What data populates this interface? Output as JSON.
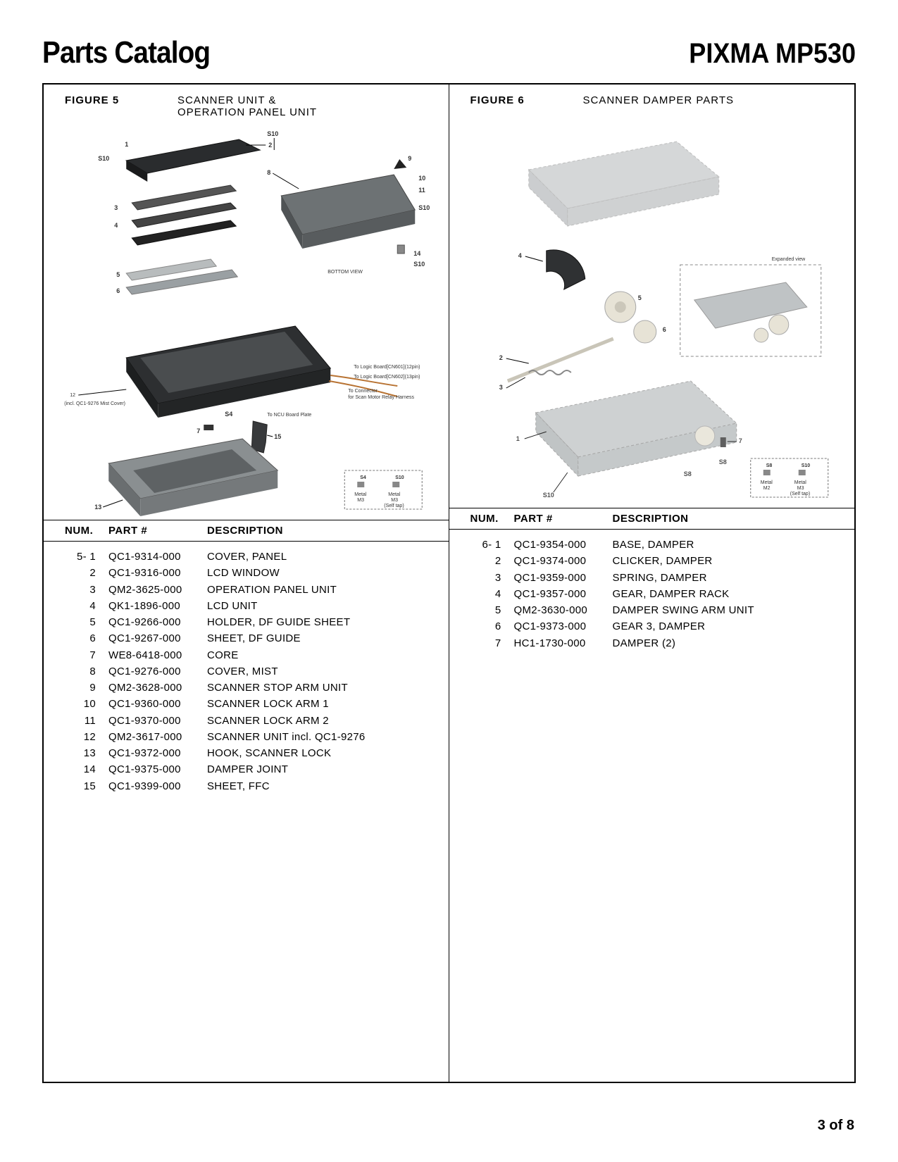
{
  "header": {
    "left": "Parts Catalog",
    "right": "PIXMA MP530"
  },
  "figures": [
    {
      "label": "FIGURE 5",
      "title": "SCANNER UNIT &\nOPERATION PANEL UNIT",
      "diagram_callouts": [
        "1",
        "2",
        "3",
        "4",
        "5",
        "6",
        "7",
        "8",
        "9",
        "10",
        "11",
        "12",
        "13",
        "14",
        "15",
        "S4",
        "S10"
      ],
      "diagram_notes": [
        "BOTTOM VIEW",
        "To Logic Board[CN601](12pin)",
        "To Logic Board[CN602](13pin)",
        "To Connector for Scan Motor Relay Harness",
        "To NCU Board Plate",
        "(incl. QC1-9276 Mist Cover)"
      ],
      "screw_box": {
        "cols": [
          "S4",
          "S10"
        ],
        "metal": [
          "Metal M3",
          "Metal M3 (Self tap)"
        ]
      },
      "table_headers": [
        "NUM.",
        "PART #",
        "DESCRIPTION"
      ],
      "rows": [
        {
          "num": "5- 1",
          "part": "QC1-9314-000",
          "desc": "COVER, PANEL"
        },
        {
          "num": "2",
          "part": "QC1-9316-000",
          "desc": "LCD WINDOW"
        },
        {
          "num": "3",
          "part": "QM2-3625-000",
          "desc": "OPERATION PANEL UNIT"
        },
        {
          "num": "4",
          "part": "QK1-1896-000",
          "desc": "LCD UNIT"
        },
        {
          "num": "5",
          "part": "QC1-9266-000",
          "desc": "HOLDER, DF GUIDE SHEET"
        },
        {
          "num": "6",
          "part": "QC1-9267-000",
          "desc": "SHEET, DF GUIDE"
        },
        {
          "num": "7",
          "part": "WE8-6418-000",
          "desc": "CORE"
        },
        {
          "num": "8",
          "part": "QC1-9276-000",
          "desc": "COVER, MIST"
        },
        {
          "num": "9",
          "part": "QM2-3628-000",
          "desc": "SCANNER STOP ARM UNIT"
        },
        {
          "num": "10",
          "part": "QC1-9360-000",
          "desc": "SCANNER LOCK ARM 1"
        },
        {
          "num": "11",
          "part": "QC1-9370-000",
          "desc": "SCANNER LOCK ARM 2"
        },
        {
          "num": "12",
          "part": "QM2-3617-000",
          "desc": "SCANNER UNIT incl. QC1-9276"
        },
        {
          "num": "13",
          "part": "QC1-9372-000",
          "desc": "HOOK, SCANNER LOCK"
        },
        {
          "num": "14",
          "part": "QC1-9375-000",
          "desc": "DAMPER JOINT"
        },
        {
          "num": "15",
          "part": "QC1-9399-000",
          "desc": "SHEET, FFC"
        }
      ]
    },
    {
      "label": "FIGURE 6",
      "title": "SCANNER DAMPER PARTS",
      "diagram_callouts": [
        "1",
        "2",
        "3",
        "4",
        "5",
        "6",
        "7",
        "S8",
        "S10"
      ],
      "diagram_notes": [
        "Expanded view"
      ],
      "screw_box": {
        "cols": [
          "S8",
          "S10"
        ],
        "metal": [
          "Metal M2",
          "Metal M3 (Self tap)"
        ]
      },
      "table_headers": [
        "NUM.",
        "PART #",
        "DESCRIPTION"
      ],
      "rows": [
        {
          "num": "6- 1",
          "part": "QC1-9354-000",
          "desc": "BASE, DAMPER"
        },
        {
          "num": "2",
          "part": "QC1-9374-000",
          "desc": "CLICKER, DAMPER"
        },
        {
          "num": "3",
          "part": "QC1-9359-000",
          "desc": "SPRING, DAMPER"
        },
        {
          "num": "4",
          "part": "QC1-9357-000",
          "desc": "GEAR, DAMPER RACK"
        },
        {
          "num": "5",
          "part": "QM2-3630-000",
          "desc": "DAMPER SWING ARM UNIT"
        },
        {
          "num": "6",
          "part": "QC1-9373-000",
          "desc": "GEAR 3, DAMPER"
        },
        {
          "num": "7",
          "part": "HC1-1730-000",
          "desc": "DAMPER (2)"
        }
      ]
    }
  ],
  "footer": {
    "page": "3 of 8"
  },
  "colors": {
    "border": "#000000",
    "text": "#000000",
    "background": "#ffffff",
    "diagram_gray": "#9aa0a3",
    "diagram_dark": "#3a3d3f",
    "diagram_light": "#c9cdce"
  }
}
